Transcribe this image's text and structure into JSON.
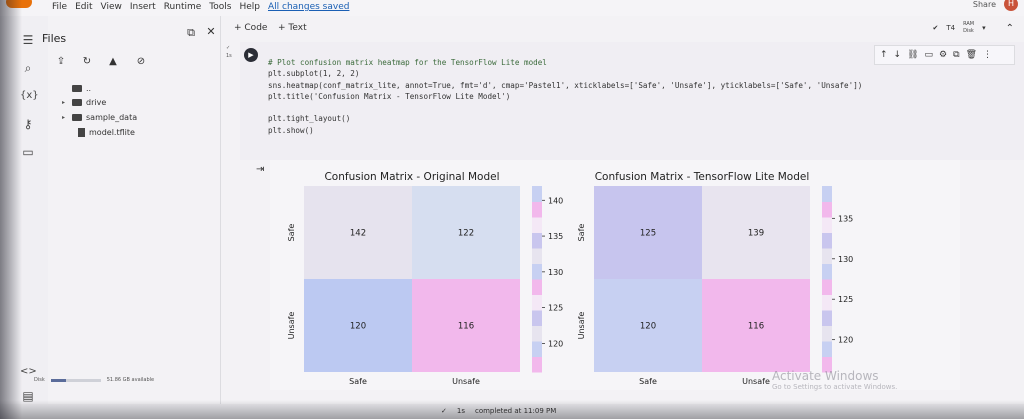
{
  "menubar": {
    "items": [
      "File",
      "Edit",
      "View",
      "Insert",
      "Runtime",
      "Tools",
      "Help"
    ],
    "saved_status": "All changes saved",
    "share_label": "Share",
    "avatar_initial": "H"
  },
  "files_panel": {
    "title": "Files",
    "tree": [
      {
        "name": "..",
        "kind": "folder",
        "indent": 0
      },
      {
        "name": "drive",
        "kind": "folder",
        "indent": 0
      },
      {
        "name": "sample_data",
        "kind": "folder",
        "indent": 0
      },
      {
        "name": "model.tflite",
        "kind": "file",
        "indent": 0
      }
    ],
    "disk_label": "Disk",
    "disk_available": "51.86 GB available",
    "disk_used_fraction": 0.3
  },
  "toolbar": {
    "add_code": "+ Code",
    "add_text": "+ Text",
    "runtime": "T4",
    "ram_label": "RAM",
    "disk_label": "Disk"
  },
  "cell": {
    "exec_time": "1s",
    "code_lines": [
      {
        "text": "# Plot confusion matrix heatmap for the TensorFlow Lite model",
        "kind": "comment"
      },
      {
        "text": "plt.subplot(1, 2, 2)",
        "kind": "code"
      },
      {
        "text": "sns.heatmap(conf_matrix_lite, annot=True, fmt='d', cmap='Pastel1', xticklabels=['Safe', 'Unsafe'], yticklabels=['Safe', 'Unsafe'])",
        "kind": "code"
      },
      {
        "text": "plt.title('Confusion Matrix - TensorFlow Lite Model')",
        "kind": "code"
      },
      {
        "text": "",
        "kind": "code"
      },
      {
        "text": "plt.tight_layout()",
        "kind": "code"
      },
      {
        "text": "plt.show()",
        "kind": "code"
      }
    ]
  },
  "chart_data": [
    {
      "type": "heatmap",
      "title": "Confusion Matrix - Original Model",
      "x_categories": [
        "Safe",
        "Unsafe"
      ],
      "y_categories": [
        "Safe",
        "Unsafe"
      ],
      "values": [
        [
          142,
          122
        ],
        [
          120,
          116
        ]
      ],
      "colorbar_ticks": [
        140,
        135,
        130,
        125,
        120
      ],
      "colorbar_range": [
        116,
        142
      ],
      "cell_colors": [
        [
          "#e6e3ee",
          "#d6def0"
        ],
        [
          "#bcc9f2",
          "#f2b8ec"
        ]
      ]
    },
    {
      "type": "heatmap",
      "title": "Confusion Matrix - TensorFlow Lite Model",
      "x_categories": [
        "Safe",
        "Unsafe"
      ],
      "y_categories": [
        "Safe",
        "Unsafe"
      ],
      "values": [
        [
          125,
          139
        ],
        [
          120,
          116
        ]
      ],
      "colorbar_ticks": [
        135,
        130,
        125,
        120
      ],
      "colorbar_range": [
        116,
        139
      ],
      "cell_colors": [
        [
          "#c7c5ee",
          "#e8e4ef"
        ],
        [
          "#c7d0f2",
          "#f2b8ec"
        ]
      ]
    }
  ],
  "statusbar": {
    "check": "✓",
    "time": "1s",
    "message": "completed at 11:09 PM"
  },
  "watermark": {
    "title": "Activate Windows",
    "subtitle": "Go to Settings to activate Windows."
  }
}
